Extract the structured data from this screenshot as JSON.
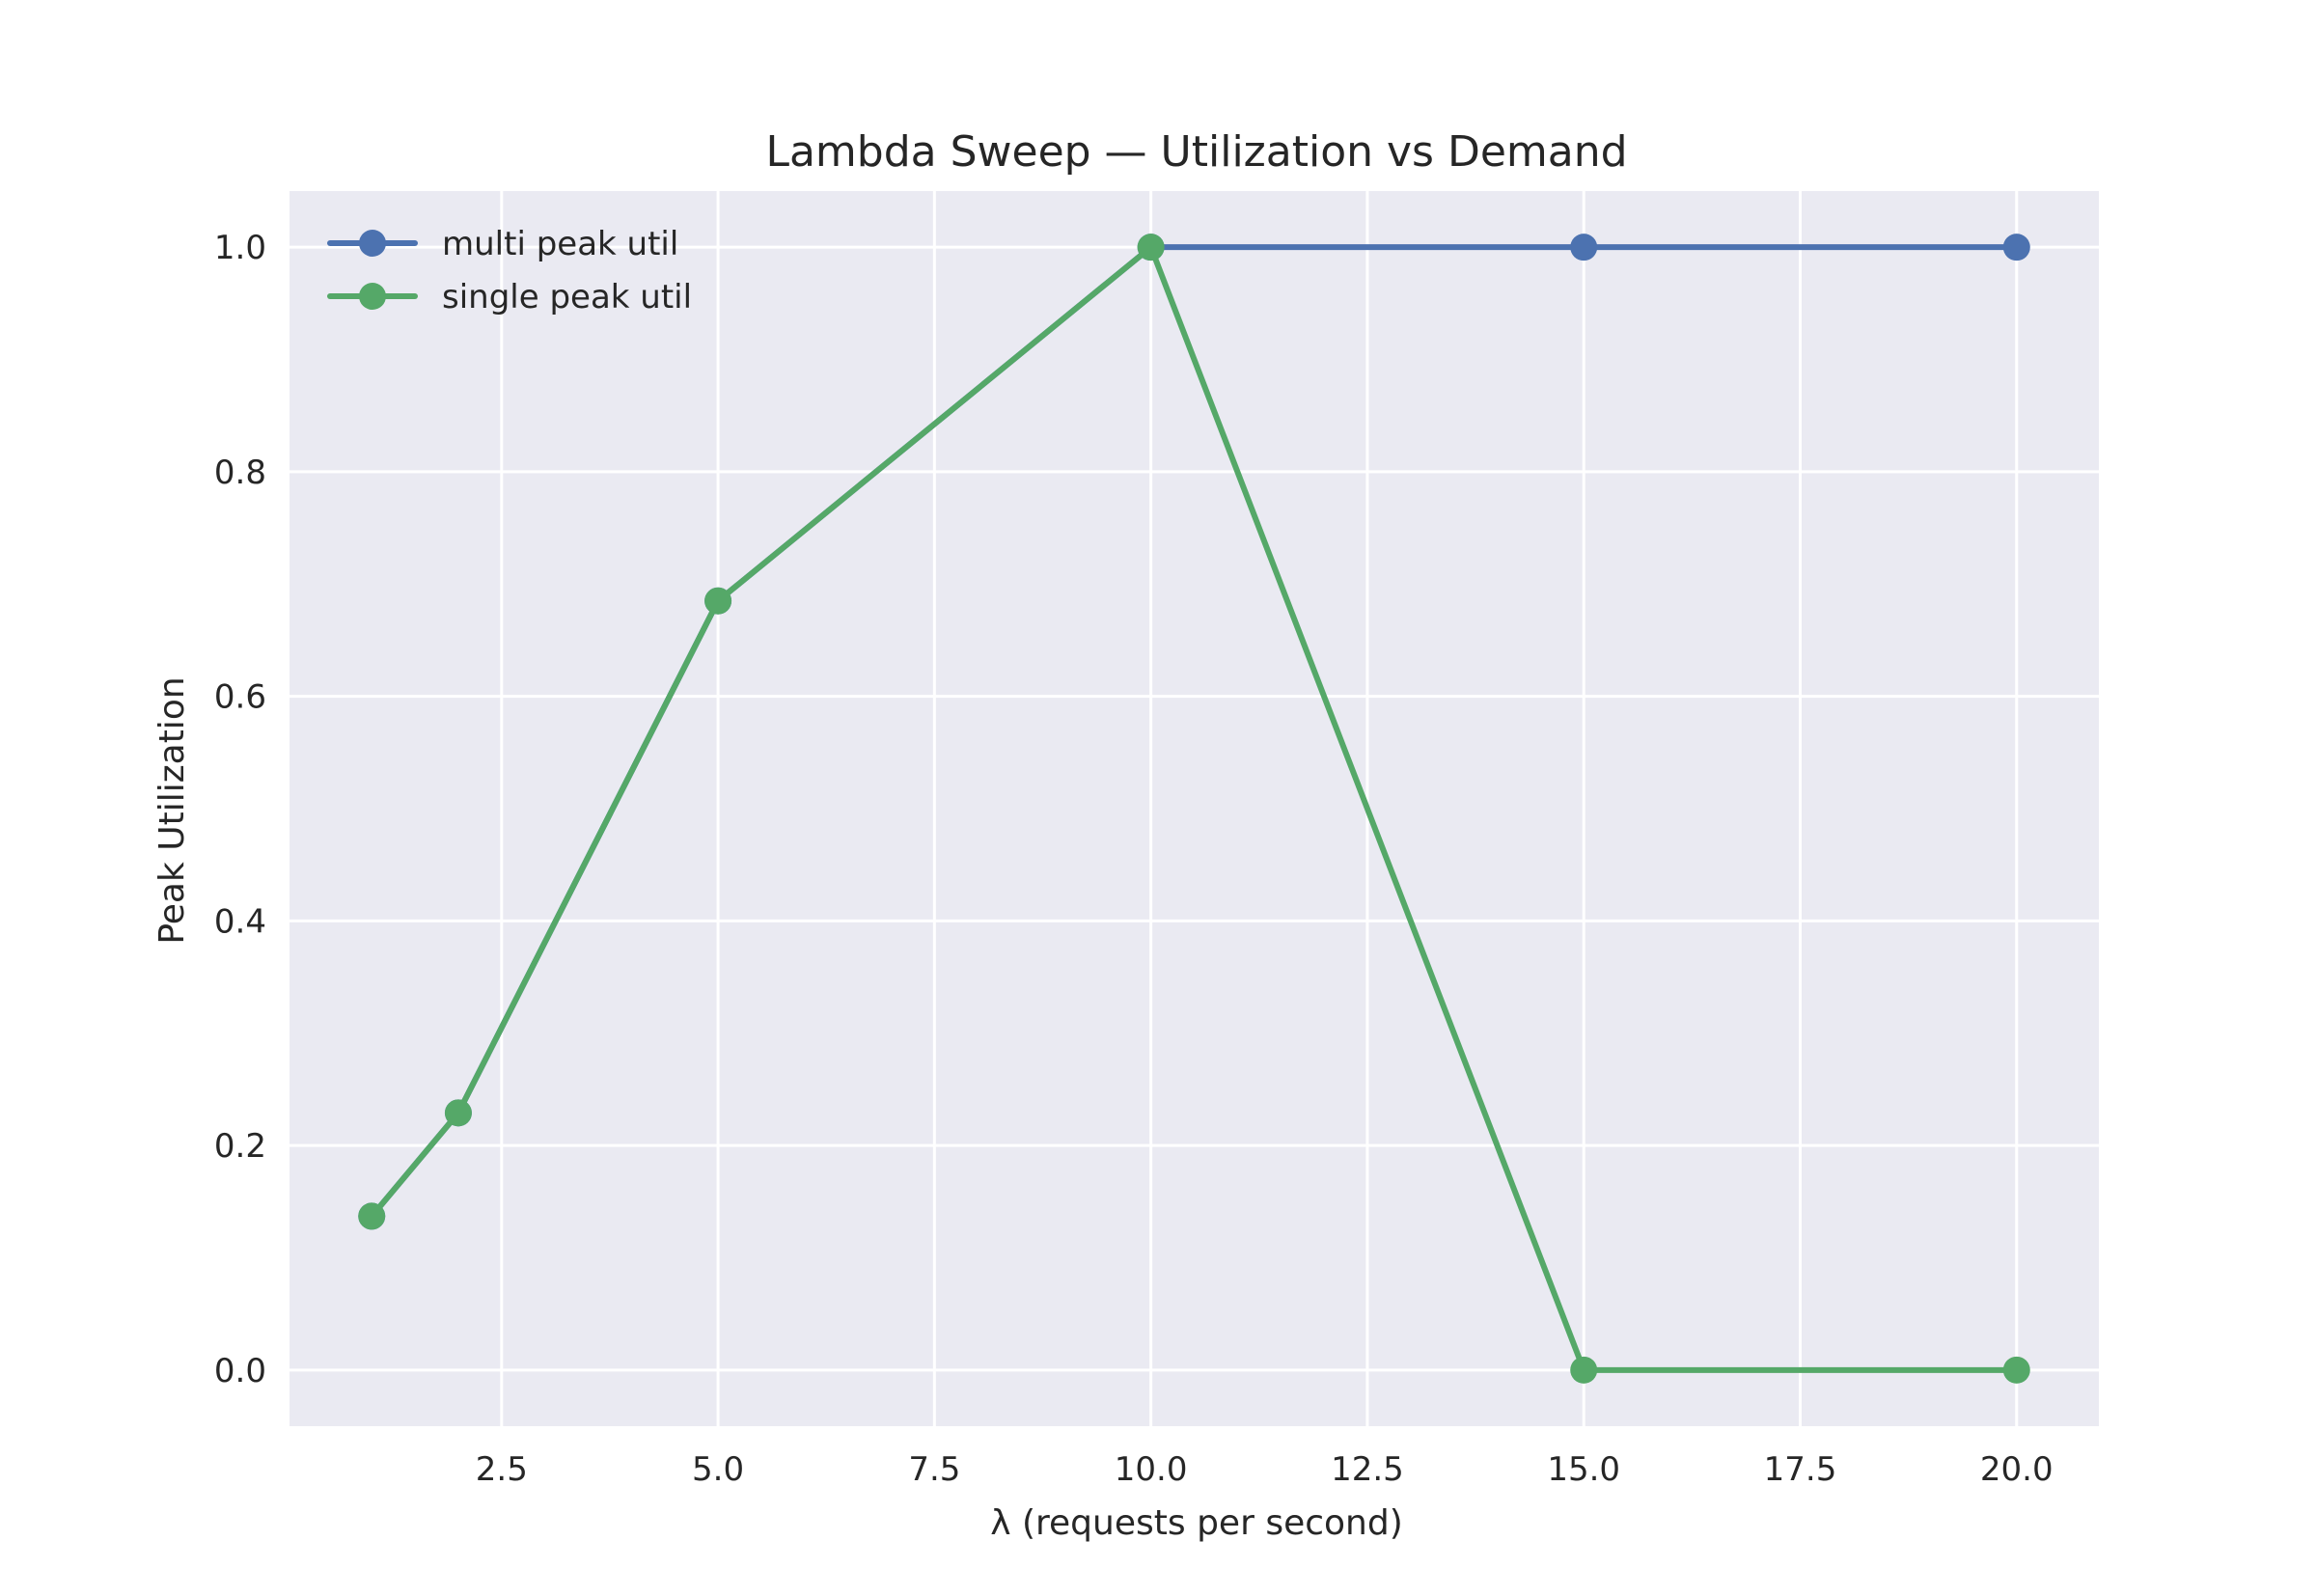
{
  "chart_data": {
    "type": "line",
    "title": "Lambda Sweep — Utilization vs Demand",
    "xlabel": "λ (requests per second)",
    "ylabel": "Peak Utilization",
    "xlim": [
      0.05,
      20.95
    ],
    "ylim": [
      -0.05,
      1.05
    ],
    "xticks": [
      2.5,
      5.0,
      7.5,
      10.0,
      12.5,
      15.0,
      17.5,
      20.0
    ],
    "xtick_labels": [
      "2.5",
      "5.0",
      "7.5",
      "10.0",
      "12.5",
      "15.0",
      "17.5",
      "20.0"
    ],
    "yticks": [
      0.0,
      0.2,
      0.4,
      0.6,
      0.8,
      1.0
    ],
    "ytick_labels": [
      "0.0",
      "0.2",
      "0.4",
      "0.6",
      "0.8",
      "1.0"
    ],
    "grid": true,
    "legend_position": "top-left",
    "series": [
      {
        "name": "multi peak util",
        "color": "#4c72b0",
        "x": [
          1,
          2,
          5,
          10,
          15,
          20
        ],
        "y": [
          0.137,
          0.229,
          0.685,
          1.0,
          1.0,
          1.0
        ]
      },
      {
        "name": "single peak util",
        "color": "#55a868",
        "x": [
          1,
          2,
          5,
          10,
          15,
          20
        ],
        "y": [
          0.137,
          0.229,
          0.685,
          1.0,
          0.0,
          0.0
        ]
      }
    ],
    "colors": {
      "plot_background": "#eaeaf2",
      "grid": "#ffffff",
      "text": "#262626"
    }
  }
}
